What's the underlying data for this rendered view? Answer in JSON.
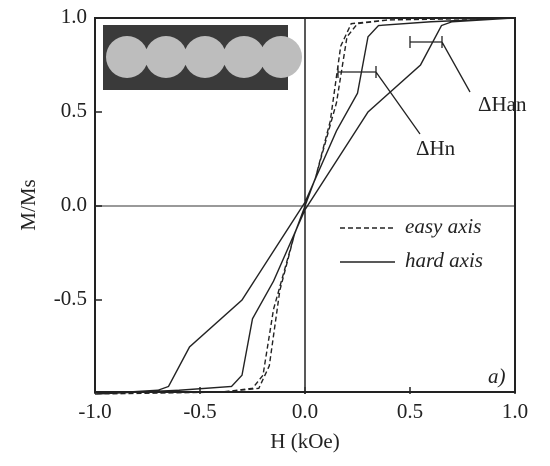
{
  "chart_data": {
    "type": "line",
    "xlabel": "H (kOe)",
    "ylabel": "M/Ms",
    "xlim": [
      -1,
      1
    ],
    "xticks": [
      {
        "value": -1,
        "label": "-1.0"
      },
      -0.5,
      {
        "value": 0,
        "label": "0.0"
      },
      0.5,
      {
        "value": 1,
        "label": "1.0"
      }
    ],
    "ylim": [
      -1,
      1
    ],
    "yticks": [
      -0.5,
      {
        "value": 0,
        "label": "0.0"
      },
      0.5,
      {
        "value": 1,
        "label": "1.0"
      }
    ],
    "series": [
      {
        "name": "easy axis",
        "color": "#222222",
        "style": "dashed",
        "x": [
          1,
          0.4,
          0.25,
          0.2,
          0.15,
          0.05,
          -0.05,
          -0.12,
          -0.17,
          -0.22,
          -0.4,
          -1,
          -0.4,
          -0.25,
          -0.2,
          -0.15,
          -0.05,
          0.05,
          0.12,
          0.17,
          0.22,
          0.4,
          1
        ],
        "values": [
          1,
          0.99,
          0.97,
          0.9,
          0.55,
          0.15,
          -0.15,
          -0.45,
          -0.85,
          -0.97,
          -0.99,
          -1,
          -0.99,
          -0.97,
          -0.9,
          -0.55,
          -0.15,
          0.15,
          0.45,
          0.85,
          0.97,
          0.99,
          1
        ]
      },
      {
        "name": "hard axis",
        "color": "#222222",
        "style": "solid",
        "x": [
          1,
          0.6,
          0.35,
          0.3,
          0.25,
          0.15,
          0,
          -0.3,
          -0.55,
          -0.65,
          -0.7,
          -1,
          -0.6,
          -0.35,
          -0.3,
          -0.25,
          -0.15,
          0,
          0.3,
          0.55,
          0.65,
          0.7,
          1
        ],
        "values": [
          1,
          0.98,
          0.96,
          0.9,
          0.6,
          0.4,
          0.02,
          -0.5,
          -0.75,
          -0.96,
          -0.98,
          -1,
          -0.98,
          -0.96,
          -0.9,
          -0.6,
          -0.4,
          -0.02,
          0.5,
          0.75,
          0.96,
          0.98,
          1
        ]
      }
    ],
    "annotations": [
      "ΔHan",
      "ΔHn",
      "a)"
    ]
  }
}
